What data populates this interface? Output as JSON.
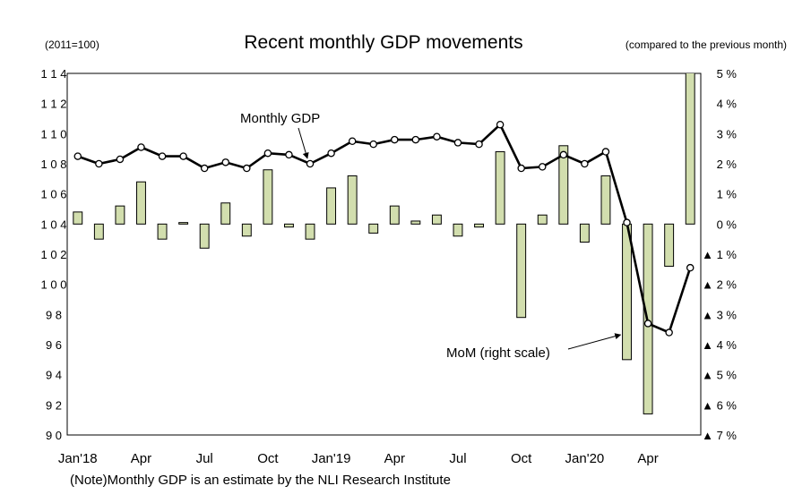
{
  "chart_data": {
    "type": "bar+line",
    "title": "Recent monthly GDP movements",
    "left_axis_unit": "(2011=100)",
    "right_axis_unit": "(compared to the previous month)",
    "note": "(Note)Monthly GDP is an estimate by the NLI Research Institute",
    "left_axis": {
      "range": [
        90,
        114
      ],
      "ticks": [
        90,
        92,
        94,
        96,
        98,
        100,
        102,
        104,
        106,
        108,
        110,
        112,
        114
      ],
      "tick_labels": [
        "9 0",
        "9 2",
        "9 4",
        "9 6",
        "9 8",
        "1 0 0",
        "1 0 2",
        "1 0 4",
        "1 0 6",
        "1 0 8",
        "1 1 0",
        "1 1 2",
        "1 1 4"
      ]
    },
    "right_axis": {
      "range": [
        -7,
        5
      ],
      "ticks": [
        5,
        4,
        3,
        2,
        1,
        0,
        -1,
        -2,
        -3,
        -4,
        -5,
        -6,
        -7
      ],
      "tick_labels": [
        "5 %",
        "4 %",
        "3 %",
        "2 %",
        "1 %",
        "0 %",
        "▲ 1 %",
        "▲ 2 %",
        "▲ 3 %",
        "▲ 4 %",
        "▲ 5 %",
        "▲ 6 %",
        "▲ 7 %"
      ]
    },
    "x_tick_labels": [
      {
        "index": 0,
        "label": "Jan'18"
      },
      {
        "index": 3,
        "label": "Apr"
      },
      {
        "index": 6,
        "label": "Jul"
      },
      {
        "index": 9,
        "label": "Oct"
      },
      {
        "index": 12,
        "label": "Jan'19"
      },
      {
        "index": 15,
        "label": "Apr"
      },
      {
        "index": 18,
        "label": "Jul"
      },
      {
        "index": 21,
        "label": "Oct"
      },
      {
        "index": 24,
        "label": "Jan'20"
      },
      {
        "index": 27,
        "label": "Apr"
      }
    ],
    "n_months": 30,
    "line_series": {
      "name": "Monthly GDP",
      "values": [
        108.5,
        108.0,
        108.3,
        109.1,
        108.5,
        108.5,
        107.7,
        108.1,
        107.7,
        108.7,
        108.6,
        108.0,
        108.7,
        109.5,
        109.3,
        109.6,
        109.6,
        109.8,
        109.4,
        109.3,
        110.6,
        107.7,
        107.8,
        108.6,
        108.0,
        108.8,
        104.1,
        97.4,
        96.8,
        101.1
      ]
    },
    "bar_series": {
      "name": "MoM (right scale)",
      "values": [
        0.4,
        -0.5,
        0.6,
        1.4,
        -0.5,
        0.05,
        -0.8,
        0.7,
        -0.4,
        1.8,
        -0.1,
        -0.5,
        1.2,
        1.6,
        -0.3,
        0.6,
        0.1,
        0.3,
        -0.4,
        -0.1,
        2.4,
        -3.1,
        0.3,
        2.6,
        -0.6,
        1.6,
        -4.5,
        -6.3,
        -1.4,
        8.6
      ]
    },
    "annotations": [
      {
        "text": "Monthly GDP",
        "target_index": 11,
        "target_series": "line"
      },
      {
        "text": "MoM (right scale)",
        "target_index": 26,
        "target_series": "bar"
      }
    ],
    "colors": {
      "bar_fill": "#d2deae",
      "bar_stroke": "#000000",
      "line": "#000000",
      "marker_fill": "#ffffff"
    }
  }
}
